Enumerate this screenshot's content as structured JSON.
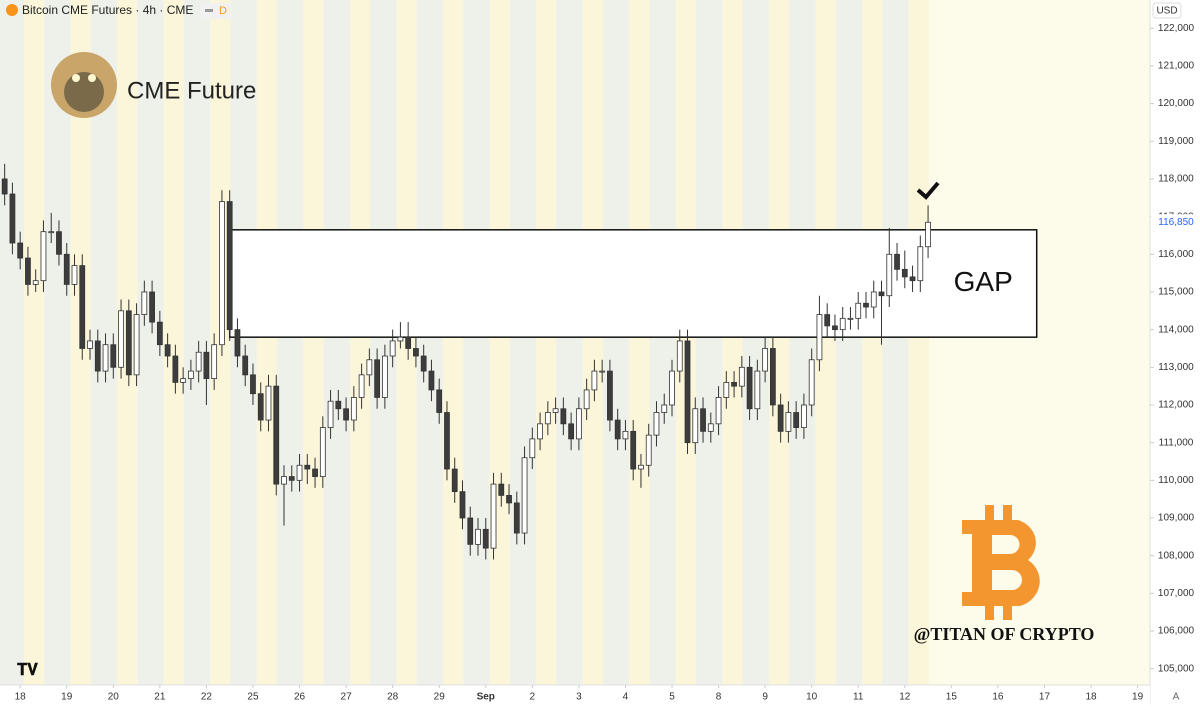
{
  "chart_data": {
    "type": "candlestick",
    "title": "Bitcoin CME Futures · 4h · CME",
    "badge": "D",
    "currency": "USD",
    "brand": "CME Future",
    "watermark": "@TITAN OF CRYPTO",
    "corner": "A",
    "up_color": "#ffffff",
    "down_color": "#3d3d3d",
    "ohlc": [
      [
        118000,
        118400,
        117300,
        117600
      ],
      [
        117600,
        117900,
        116000,
        116300
      ],
      [
        116300,
        116600,
        115600,
        115900
      ],
      [
        115900,
        116200,
        114900,
        115200
      ],
      [
        115200,
        115600,
        115000,
        115300
      ],
      [
        115300,
        116900,
        115000,
        116600
      ],
      [
        116600,
        117100,
        116300,
        116600
      ],
      [
        116600,
        116900,
        115700,
        116000
      ],
      [
        116000,
        116300,
        114900,
        115200
      ],
      [
        115200,
        116000,
        114900,
        115700
      ],
      [
        115700,
        116000,
        113200,
        113500
      ],
      [
        113500,
        114000,
        113200,
        113700
      ],
      [
        113700,
        114000,
        112600,
        112900
      ],
      [
        112900,
        113900,
        112600,
        113600
      ],
      [
        113600,
        113900,
        112700,
        113000
      ],
      [
        113000,
        114800,
        112700,
        114500
      ],
      [
        114500,
        114800,
        112500,
        112800
      ],
      [
        112800,
        114700,
        112500,
        114400
      ],
      [
        114400,
        115300,
        114100,
        115000
      ],
      [
        115000,
        115300,
        113900,
        114200
      ],
      [
        114200,
        114500,
        113300,
        113600
      ],
      [
        113600,
        113900,
        113000,
        113300
      ],
      [
        113300,
        113600,
        112300,
        112600
      ],
      [
        112600,
        113000,
        112300,
        112700
      ],
      [
        112700,
        113200,
        112400,
        112900
      ],
      [
        112900,
        113700,
        112600,
        113400
      ],
      [
        113400,
        113700,
        112000,
        112700
      ],
      [
        112700,
        113900,
        112400,
        113600
      ],
      [
        113600,
        117700,
        113300,
        117400
      ],
      [
        117400,
        117700,
        113700,
        114000
      ],
      [
        114000,
        114300,
        113000,
        113300
      ],
      [
        113300,
        113600,
        112500,
        112800
      ],
      [
        112800,
        113100,
        112000,
        112300
      ],
      [
        112300,
        112600,
        111300,
        111600
      ],
      [
        111600,
        112800,
        111300,
        112500
      ],
      [
        112500,
        112800,
        109600,
        109900
      ],
      [
        109900,
        110400,
        108800,
        110100
      ],
      [
        110100,
        110400,
        109700,
        110000
      ],
      [
        110000,
        110700,
        109700,
        110400
      ],
      [
        110400,
        110700,
        109900,
        110300
      ],
      [
        110300,
        110600,
        109800,
        110100
      ],
      [
        110100,
        111700,
        109800,
        111400
      ],
      [
        111400,
        112400,
        111100,
        112100
      ],
      [
        112100,
        112400,
        111600,
        111900
      ],
      [
        111900,
        112200,
        111300,
        111600
      ],
      [
        111600,
        112500,
        111300,
        112200
      ],
      [
        112200,
        113100,
        111900,
        112800
      ],
      [
        112800,
        113500,
        112500,
        113200
      ],
      [
        113200,
        113500,
        111900,
        112200
      ],
      [
        112200,
        113600,
        111900,
        113300
      ],
      [
        113300,
        114000,
        113000,
        113700
      ],
      [
        113700,
        114200,
        113500,
        113800
      ],
      [
        113800,
        114200,
        113200,
        113500
      ],
      [
        113500,
        113800,
        113000,
        113300
      ],
      [
        113300,
        113600,
        112600,
        112900
      ],
      [
        112900,
        113200,
        112100,
        112400
      ],
      [
        112400,
        112700,
        111500,
        111800
      ],
      [
        111800,
        112100,
        110000,
        110300
      ],
      [
        110300,
        110600,
        109400,
        109700
      ],
      [
        109700,
        110000,
        108700,
        109000
      ],
      [
        109000,
        109300,
        108000,
        108300
      ],
      [
        108300,
        109000,
        108000,
        108700
      ],
      [
        108700,
        109000,
        107900,
        108200
      ],
      [
        108200,
        110200,
        107900,
        109900
      ],
      [
        109900,
        110200,
        109300,
        109600
      ],
      [
        109600,
        109900,
        109100,
        109400
      ],
      [
        109400,
        109700,
        108300,
        108600
      ],
      [
        108600,
        110900,
        108300,
        110600
      ],
      [
        110600,
        111400,
        110300,
        111100
      ],
      [
        111100,
        111800,
        110800,
        111500
      ],
      [
        111500,
        112100,
        111200,
        111800
      ],
      [
        111800,
        112200,
        111500,
        111900
      ],
      [
        111900,
        112200,
        111200,
        111500
      ],
      [
        111500,
        111800,
        110800,
        111100
      ],
      [
        111100,
        112200,
        110800,
        111900
      ],
      [
        111900,
        112700,
        111600,
        112400
      ],
      [
        112400,
        113200,
        112100,
        112900
      ],
      [
        112900,
        113200,
        112600,
        112900
      ],
      [
        112900,
        113200,
        111300,
        111600
      ],
      [
        111600,
        111900,
        110800,
        111100
      ],
      [
        111100,
        111600,
        110800,
        111300
      ],
      [
        111300,
        111600,
        110000,
        110300
      ],
      [
        110300,
        110700,
        109800,
        110400
      ],
      [
        110400,
        111500,
        110100,
        111200
      ],
      [
        111200,
        112100,
        110900,
        111800
      ],
      [
        111800,
        112300,
        111500,
        112000
      ],
      [
        112000,
        113200,
        111700,
        112900
      ],
      [
        112900,
        114000,
        112600,
        113700
      ],
      [
        113700,
        114000,
        110700,
        111000
      ],
      [
        111000,
        112200,
        110700,
        111900
      ],
      [
        111900,
        112200,
        111000,
        111300
      ],
      [
        111300,
        111800,
        111000,
        111500
      ],
      [
        111500,
        112500,
        111200,
        112200
      ],
      [
        112200,
        112900,
        111900,
        112600
      ],
      [
        112600,
        112900,
        112200,
        112500
      ],
      [
        112500,
        113300,
        112200,
        113000
      ],
      [
        113000,
        113300,
        111600,
        111900
      ],
      [
        111900,
        113200,
        111600,
        112900
      ],
      [
        112900,
        113800,
        112600,
        113500
      ],
      [
        113500,
        113800,
        111700,
        112000
      ],
      [
        112000,
        112300,
        111000,
        111300
      ],
      [
        111300,
        112100,
        111000,
        111800
      ],
      [
        111800,
        112100,
        111100,
        111400
      ],
      [
        111400,
        112300,
        111100,
        112000
      ],
      [
        112000,
        113500,
        111700,
        113200
      ],
      [
        113200,
        114900,
        112900,
        114400
      ],
      [
        114400,
        114700,
        113800,
        114100
      ],
      [
        114100,
        114400,
        113700,
        114000
      ],
      [
        114000,
        114600,
        113700,
        114300
      ],
      [
        114300,
        114600,
        114000,
        114300
      ],
      [
        114300,
        115000,
        114000,
        114700
      ],
      [
        114700,
        115000,
        114300,
        114600
      ],
      [
        114600,
        115300,
        114300,
        115000
      ],
      [
        115000,
        115300,
        113600,
        114900
      ],
      [
        114900,
        116700,
        114600,
        116000
      ],
      [
        116000,
        116300,
        115300,
        115600
      ],
      [
        115600,
        116100,
        115100,
        115400
      ],
      [
        115400,
        115700,
        115000,
        115300
      ],
      [
        115300,
        116500,
        115000,
        116200
      ],
      [
        116200,
        117300,
        115900,
        116850
      ]
    ],
    "last_price": {
      "value": 116850,
      "label": "116,850"
    },
    "gap": {
      "label": "GAP",
      "top": 116650,
      "bottom": 113800,
      "start": 29,
      "end": 133
    },
    "xlim": [
      -0.6,
      147.6
    ],
    "xticks": [
      {
        "value": 2,
        "label": "18"
      },
      {
        "value": 8,
        "label": "19"
      },
      {
        "value": 14,
        "label": "20"
      },
      {
        "value": 20,
        "label": "21"
      },
      {
        "value": 26,
        "label": "22"
      },
      {
        "value": 32,
        "label": "25"
      },
      {
        "value": 38,
        "label": "26"
      },
      {
        "value": 44,
        "label": "27"
      },
      {
        "value": 50,
        "label": "28"
      },
      {
        "value": 56,
        "label": "29"
      },
      {
        "value": 62,
        "label": "Sep"
      },
      {
        "value": 68,
        "label": "2"
      },
      {
        "value": 74,
        "label": "3"
      },
      {
        "value": 80,
        "label": "4"
      },
      {
        "value": 86,
        "label": "5"
      },
      {
        "value": 92,
        "label": "8"
      },
      {
        "value": 98,
        "label": "9"
      },
      {
        "value": 104,
        "label": "10"
      },
      {
        "value": 110,
        "label": "11"
      },
      {
        "value": 116,
        "label": "12"
      },
      {
        "value": 122,
        "label": "15"
      },
      {
        "value": 128,
        "label": "16"
      },
      {
        "value": 134,
        "label": "17"
      },
      {
        "value": 140,
        "label": "18"
      },
      {
        "value": 146,
        "label": "19"
      }
    ],
    "ylim": [
      104700,
      122750
    ],
    "yticks": [
      {
        "value": 105000,
        "label": "105,000"
      },
      {
        "value": 106000,
        "label": "106,000"
      },
      {
        "value": 107000,
        "label": "107,000"
      },
      {
        "value": 108000,
        "label": "108,000"
      },
      {
        "value": 109000,
        "label": "109,000"
      },
      {
        "value": 110000,
        "label": "110,000"
      },
      {
        "value": 111000,
        "label": "111,000"
      },
      {
        "value": 112000,
        "label": "112,000"
      },
      {
        "value": 113000,
        "label": "113,000"
      },
      {
        "value": 114000,
        "label": "114,000"
      },
      {
        "value": 115000,
        "label": "115,000"
      },
      {
        "value": 116000,
        "label": "116,000"
      },
      {
        "value": 117000,
        "label": "117,000"
      },
      {
        "value": 118000,
        "label": "118,000"
      },
      {
        "value": 119000,
        "label": "119,000"
      },
      {
        "value": 120000,
        "label": "120,000"
      },
      {
        "value": 121000,
        "label": "121,000"
      },
      {
        "value": 122000,
        "label": "122,000"
      }
    ]
  }
}
